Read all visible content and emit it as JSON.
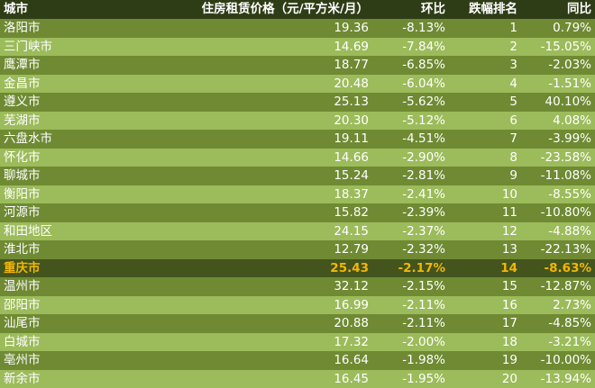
{
  "headers": {
    "city": "城市",
    "price": "住房租赁价格（元/平方米/月）",
    "mom": "环比",
    "rank": "跌幅排名",
    "yoy": "同比"
  },
  "rows": [
    {
      "city": "洛阳市",
      "price": "19.36",
      "mom": "-8.13%",
      "rank": "1",
      "yoy": "0.79%"
    },
    {
      "city": "三门峡市",
      "price": "14.69",
      "mom": "-7.84%",
      "rank": "2",
      "yoy": "-15.05%"
    },
    {
      "city": "鹰潭市",
      "price": "18.77",
      "mom": "-6.85%",
      "rank": "3",
      "yoy": "-2.03%"
    },
    {
      "city": "金昌市",
      "price": "20.48",
      "mom": "-6.04%",
      "rank": "4",
      "yoy": "-1.51%"
    },
    {
      "city": "遵义市",
      "price": "25.13",
      "mom": "-5.62%",
      "rank": "5",
      "yoy": "40.10%"
    },
    {
      "city": "芜湖市",
      "price": "20.30",
      "mom": "-5.12%",
      "rank": "6",
      "yoy": "4.08%"
    },
    {
      "city": "六盘水市",
      "price": "19.11",
      "mom": "-4.51%",
      "rank": "7",
      "yoy": "-3.99%"
    },
    {
      "city": "怀化市",
      "price": "14.66",
      "mom": "-2.90%",
      "rank": "8",
      "yoy": "-23.58%"
    },
    {
      "city": "聊城市",
      "price": "15.24",
      "mom": "-2.81%",
      "rank": "9",
      "yoy": "-11.08%"
    },
    {
      "city": "衡阳市",
      "price": "18.37",
      "mom": "-2.41%",
      "rank": "10",
      "yoy": "-8.55%"
    },
    {
      "city": "河源市",
      "price": "15.82",
      "mom": "-2.39%",
      "rank": "11",
      "yoy": "-10.80%"
    },
    {
      "city": "和田地区",
      "price": "24.15",
      "mom": "-2.37%",
      "rank": "12",
      "yoy": "-4.88%"
    },
    {
      "city": "淮北市",
      "price": "12.79",
      "mom": "-2.32%",
      "rank": "13",
      "yoy": "-22.13%"
    },
    {
      "city": "重庆市",
      "price": "25.43",
      "mom": "-2.17%",
      "rank": "14",
      "yoy": "-8.63%",
      "highlight": true
    },
    {
      "city": "温州市",
      "price": "32.12",
      "mom": "-2.15%",
      "rank": "15",
      "yoy": "-12.87%"
    },
    {
      "city": "邵阳市",
      "price": "16.99",
      "mom": "-2.11%",
      "rank": "16",
      "yoy": "2.73%"
    },
    {
      "city": "汕尾市",
      "price": "20.88",
      "mom": "-2.11%",
      "rank": "17",
      "yoy": "-4.85%"
    },
    {
      "city": "白城市",
      "price": "17.32",
      "mom": "-2.00%",
      "rank": "18",
      "yoy": "-3.21%"
    },
    {
      "city": "亳州市",
      "price": "16.64",
      "mom": "-1.98%",
      "rank": "19",
      "yoy": "-10.00%"
    },
    {
      "city": "新余市",
      "price": "16.45",
      "mom": "-1.95%",
      "rank": "20",
      "yoy": "-13.94%"
    }
  ],
  "colors": {
    "header_bg": "#2f3d17",
    "row_dark": "#6f8a33",
    "row_light": "#9cbb5b",
    "highlight_bg": "#43541d",
    "highlight_text": "#f2b705"
  }
}
